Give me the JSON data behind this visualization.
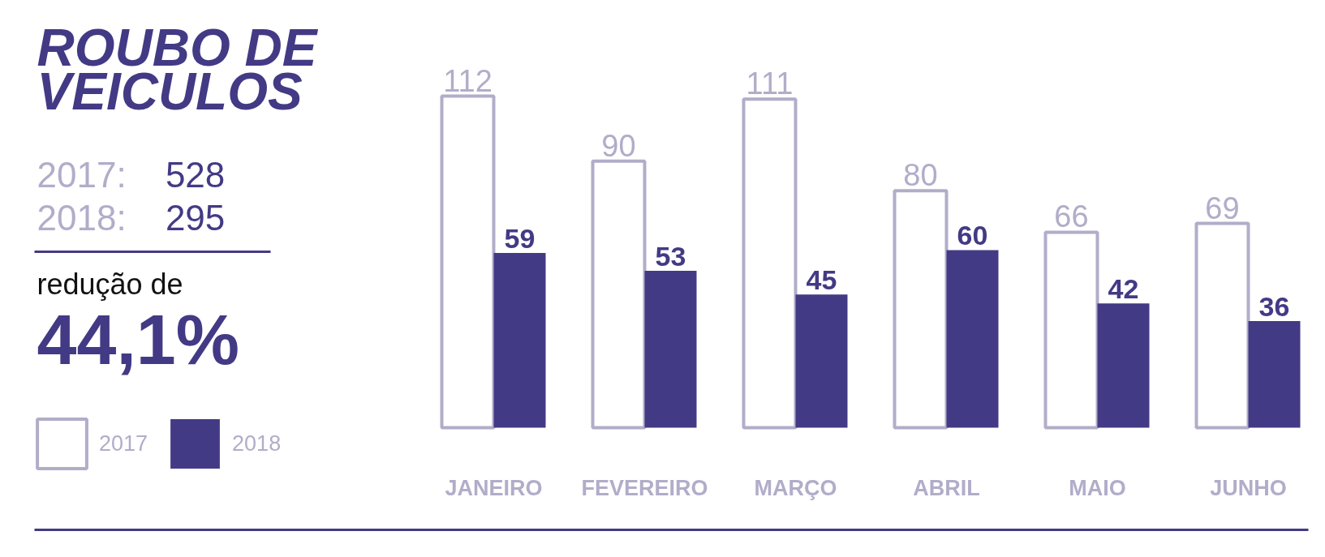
{
  "chart_data": {
    "type": "bar",
    "title": "ROUBO DE VEICULOS",
    "categories": [
      "JANEIRO",
      "FEVEREIRO",
      "MARÇO",
      "ABRIL",
      "MAIO",
      "JUNHO"
    ],
    "series": [
      {
        "name": "2017",
        "color": "#b1adc9",
        "values": [
          112,
          90,
          111,
          80,
          66,
          69
        ]
      },
      {
        "name": "2018",
        "color": "#433a85",
        "values": [
          59,
          53,
          45,
          60,
          42,
          36
        ]
      }
    ],
    "data_labels": true,
    "legend": "left",
    "annotations": [
      "2017: 528",
      "2018: 295",
      "redução de",
      "44,1%"
    ]
  }
}
